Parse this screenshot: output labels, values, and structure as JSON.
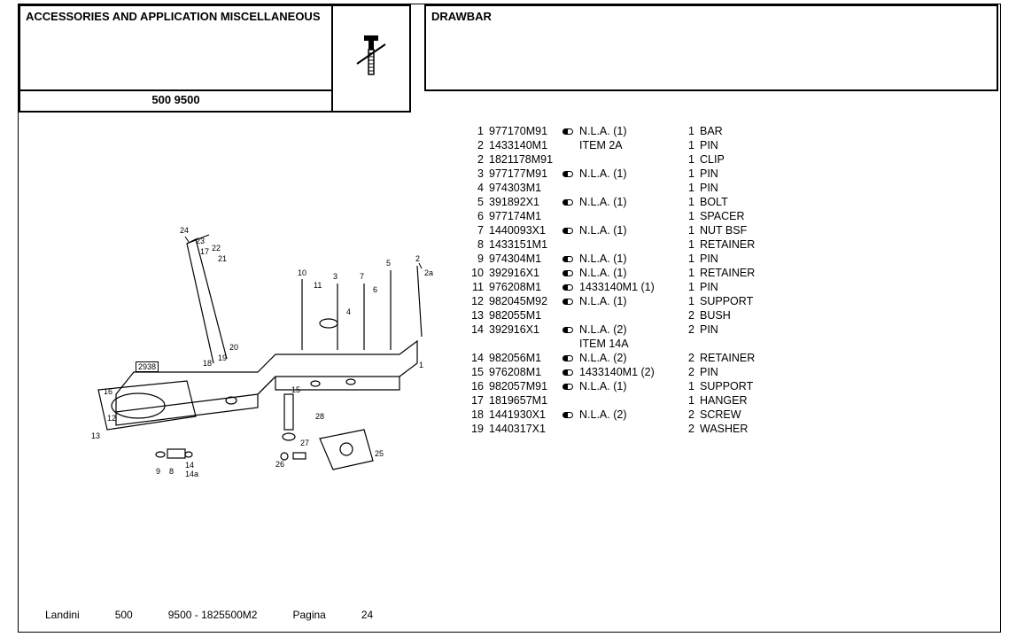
{
  "header": {
    "left_title": "ACCESSORIES AND APPLICATION MISCELLANEOUS",
    "model": "500 9500",
    "right_title": "DRAWBAR"
  },
  "diagram": {
    "ref_code": "2938",
    "callouts": [
      "1",
      "2",
      "2a",
      "3",
      "4",
      "5",
      "6",
      "7",
      "8",
      "9",
      "10",
      "11",
      "12",
      "13",
      "14",
      "14a",
      "15",
      "16",
      "17",
      "18",
      "19",
      "20",
      "21",
      "22",
      "23",
      "24",
      "25",
      "26",
      "27",
      "28"
    ]
  },
  "parts": [
    {
      "ref": "1",
      "part": "977170M91",
      "ind": true,
      "note": "N.L.A.  (1)",
      "qty": "1",
      "desc": "BAR"
    },
    {
      "ref": "2",
      "part": "1433140M1",
      "ind": false,
      "note": "ITEM 2A",
      "qty": "1",
      "desc": "PIN"
    },
    {
      "ref": "2",
      "part": "1821178M91",
      "ind": false,
      "note": "",
      "qty": "1",
      "desc": "CLIP"
    },
    {
      "ref": "3",
      "part": "977177M91",
      "ind": true,
      "note": "N.L.A.  (1)",
      "qty": "1",
      "desc": "PIN"
    },
    {
      "ref": "4",
      "part": "974303M1",
      "ind": false,
      "note": "",
      "qty": "1",
      "desc": "PIN"
    },
    {
      "ref": "5",
      "part": "391892X1",
      "ind": true,
      "note": "N.L.A.  (1)",
      "qty": "1",
      "desc": "BOLT"
    },
    {
      "ref": "6",
      "part": "977174M1",
      "ind": false,
      "note": "",
      "qty": "1",
      "desc": "SPACER"
    },
    {
      "ref": "7",
      "part": "1440093X1",
      "ind": true,
      "note": "N.L.A.  (1)",
      "qty": "1",
      "desc": "NUT BSF"
    },
    {
      "ref": "8",
      "part": "1433151M1",
      "ind": false,
      "note": "",
      "qty": "1",
      "desc": "RETAINER"
    },
    {
      "ref": "9",
      "part": "974304M1",
      "ind": true,
      "note": "N.L.A.  (1)",
      "qty": "1",
      "desc": "PIN"
    },
    {
      "ref": "10",
      "part": "392916X1",
      "ind": true,
      "note": "N.L.A.  (1)",
      "qty": "1",
      "desc": "RETAINER"
    },
    {
      "ref": "11",
      "part": "976208M1",
      "ind": true,
      "note": "1433140M1  (1)",
      "qty": "1",
      "desc": "PIN"
    },
    {
      "ref": "12",
      "part": "982045M92",
      "ind": true,
      "note": "N.L.A.  (1)",
      "qty": "1",
      "desc": "SUPPORT"
    },
    {
      "ref": "13",
      "part": "982055M1",
      "ind": false,
      "note": "",
      "qty": "2",
      "desc": "BUSH"
    },
    {
      "ref": "14",
      "part": "392916X1",
      "ind": true,
      "note": "N.L.A.  (2)\nITEM 14A",
      "qty": "2",
      "desc": "PIN"
    },
    {
      "ref": "14",
      "part": "982056M1",
      "ind": true,
      "note": "N.L.A.  (2)",
      "qty": "2",
      "desc": "RETAINER"
    },
    {
      "ref": "15",
      "part": "976208M1",
      "ind": true,
      "note": "1433140M1  (2)",
      "qty": "2",
      "desc": "PIN"
    },
    {
      "ref": "16",
      "part": "982057M91",
      "ind": true,
      "note": "N.L.A.  (1)",
      "qty": "1",
      "desc": "SUPPORT"
    },
    {
      "ref": "17",
      "part": "1819657M1",
      "ind": false,
      "note": "",
      "qty": "1",
      "desc": "HANGER"
    },
    {
      "ref": "18",
      "part": "1441930X1",
      "ind": true,
      "note": "N.L.A.  (2)",
      "qty": "2",
      "desc": "SCREW"
    },
    {
      "ref": "19",
      "part": "1440317X1",
      "ind": false,
      "note": "",
      "qty": "2",
      "desc": "WASHER"
    }
  ],
  "footer": {
    "brand": "Landini",
    "series": "500",
    "catalog": "9500 - 1825500M2",
    "page_label": "Pagina",
    "page_num": "24"
  }
}
